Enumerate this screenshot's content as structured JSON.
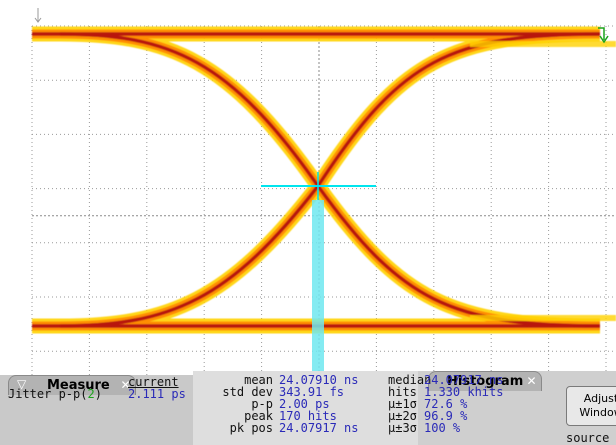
{
  "measure_panel": {
    "tab_label": "Measure",
    "column_header": "current",
    "measurement_name": "Jitter p-p(",
    "channel": "2",
    "measurement_name_end": ")",
    "current_value": "2.111 ps"
  },
  "histogram_panel": {
    "tab_label": "Histogram",
    "stats": [
      {
        "label": "mean",
        "value": "24.07910 ns"
      },
      {
        "label": "std dev",
        "value": "343.91 fs"
      },
      {
        "label": "p-p",
        "value": "2.00 ps"
      },
      {
        "label": "peak",
        "value": "170 hits"
      },
      {
        "label": "pk pos",
        "value": "24.07917 ns"
      }
    ],
    "stats_right": [
      {
        "label": "median",
        "value": "24.07917 ns"
      },
      {
        "label": "hits",
        "value": "1.330 khits"
      },
      {
        "label": "μ±1σ",
        "value": "72.6 %"
      },
      {
        "label": "μ±2σ",
        "value": "96.9 %"
      },
      {
        "label": "μ±3σ",
        "value": "100 %"
      }
    ],
    "adjust_button": "Adjust Window",
    "source_label": "source"
  },
  "colors": {
    "trace_core": "#b8140f",
    "trace_mid": "#ff8a00",
    "trace_outer": "#ffd200",
    "histogram": "#00e5ee",
    "grid": "#9a9a9a",
    "channel_marker": "#1ba31b"
  }
}
